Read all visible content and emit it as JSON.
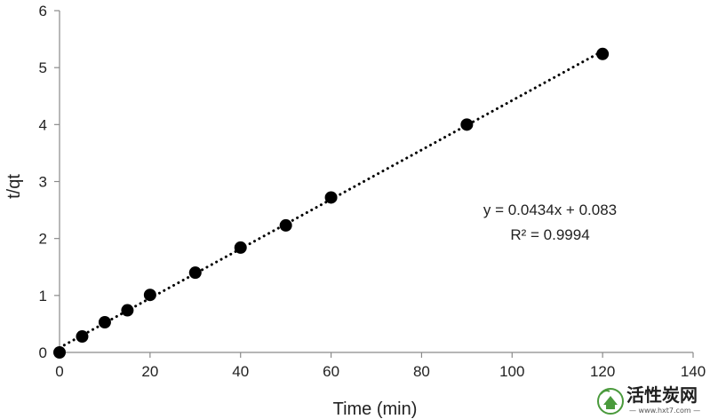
{
  "chart_data": {
    "type": "scatter",
    "xlabel": "Time (min)",
    "ylabel": "t/qt",
    "xlim": [
      0,
      140
    ],
    "ylim": [
      0,
      6
    ],
    "xticks": [
      0,
      20,
      40,
      60,
      80,
      100,
      120,
      140
    ],
    "yticks": [
      0,
      1,
      2,
      3,
      4,
      5,
      6
    ],
    "grid": false,
    "points": [
      {
        "x": 0,
        "y": 0.0
      },
      {
        "x": 5,
        "y": 0.28
      },
      {
        "x": 10,
        "y": 0.53
      },
      {
        "x": 15,
        "y": 0.74
      },
      {
        "x": 20,
        "y": 1.01
      },
      {
        "x": 30,
        "y": 1.4
      },
      {
        "x": 40,
        "y": 1.84
      },
      {
        "x": 50,
        "y": 2.23
      },
      {
        "x": 60,
        "y": 2.72
      },
      {
        "x": 90,
        "y": 4.0
      },
      {
        "x": 120,
        "y": 5.24
      }
    ],
    "trendline": {
      "style": "dotted",
      "slope": 0.0434,
      "intercept": 0.083,
      "x_range": [
        0,
        120
      ],
      "equation": "y = 0.0434x + 0.083",
      "r_squared": "R² = 0.9994"
    },
    "marker_color": "#000000",
    "line_color": "#000000"
  },
  "watermark": {
    "cn_text": "活性炭网",
    "url_text": "— www.hxt7.com —",
    "icon": "leaf-house-logo",
    "color": "#4a9a3c"
  }
}
